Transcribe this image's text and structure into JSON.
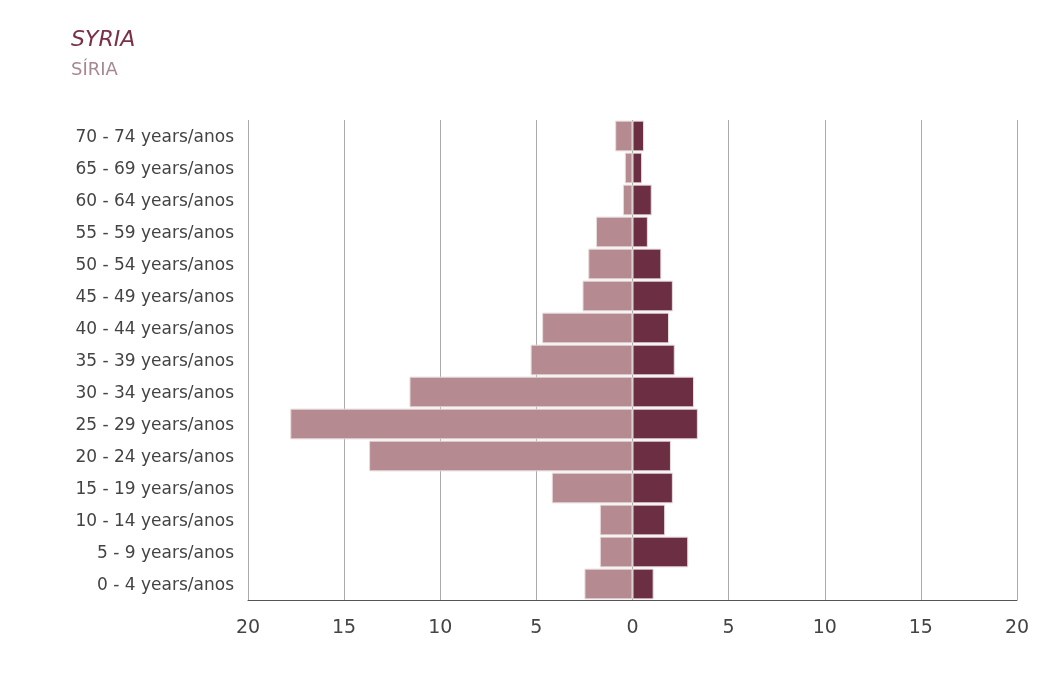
{
  "chart_data": {
    "type": "bar",
    "title": "SYRIA",
    "subtitle": "SÍRIA",
    "orientation": "horizontal",
    "stacked": true,
    "categories": [
      "70 - 74 years/anos",
      "65 - 69 years/anos",
      "60 - 64 years/anos",
      "55 - 59 years/anos",
      "50 - 54 years/anos",
      "45 - 49 years/anos",
      "40 - 44 years/anos",
      "35 - 39 years/anos",
      "30 - 34 years/anos",
      "25 - 29 years/anos",
      "20 - 24 years/anos",
      "15 - 19 years/anos",
      "10 - 14 years/anos",
      "5 - 9 years/anos",
      "0 - 4 years/anos"
    ],
    "series": [
      {
        "color": "#b58a90",
        "values": [
          -0.9,
          -0.4,
          -0.5,
          -1.9,
          -2.3,
          -2.6,
          -4.7,
          -5.3,
          -11.6,
          -17.8,
          -13.7,
          -4.2,
          -1.7,
          -1.7,
          -2.5
        ]
      },
      {
        "color": "#6b2e42",
        "values": [
          0.6,
          0.5,
          1.0,
          0.8,
          1.5,
          2.1,
          1.9,
          2.2,
          3.2,
          3.4,
          2.0,
          2.1,
          1.7,
          2.9,
          1.1
        ]
      }
    ],
    "xlim": [
      -20,
      20
    ],
    "xticks": [
      {
        "value": -20,
        "label": "20"
      },
      {
        "value": -15,
        "label": "15"
      },
      {
        "value": -10,
        "label": "10"
      },
      {
        "value": -5,
        "label": "5"
      },
      0,
      5,
      10,
      15,
      20
    ],
    "grid": "x"
  }
}
